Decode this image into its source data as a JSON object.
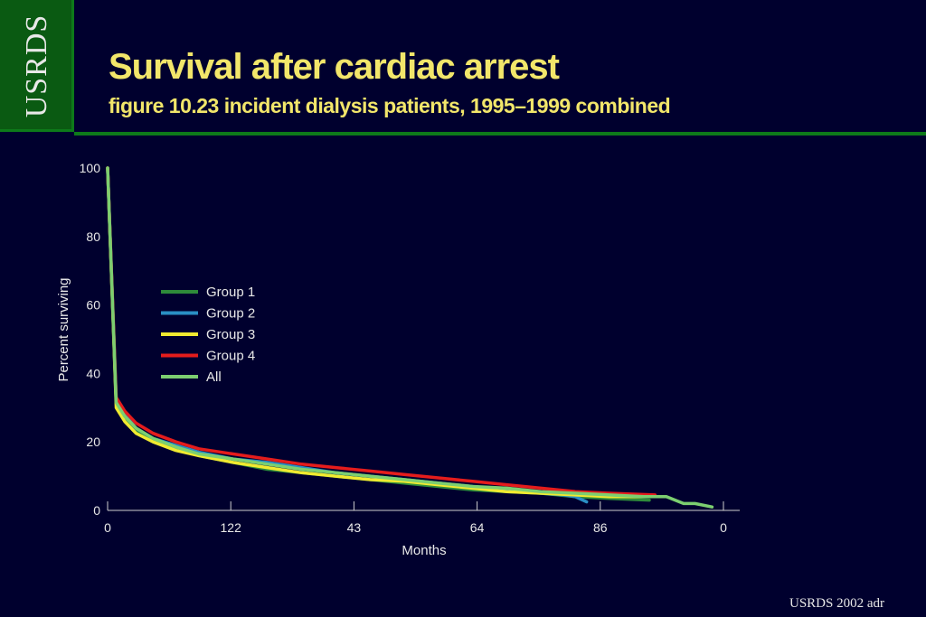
{
  "header": {
    "logo_text": "USRDS",
    "title": "Survival after cardiac arrest",
    "subtitle": "figure 10.23 incident dialysis patients, 1995–1999 combined"
  },
  "footer": {
    "source": "USRDS 2002 adr"
  },
  "colors": {
    "background": "#00002e",
    "title": "#f2e66a",
    "group1": "#2e8b3a",
    "group2": "#2a8fc4",
    "group3": "#f0ea30",
    "group4": "#e41c1c",
    "all": "#7ccf70"
  },
  "chart_data": {
    "type": "line",
    "xlabel": "Months",
    "ylabel": "Percent surviving",
    "x_tick_labels": [
      "0",
      "122",
      "43",
      "64",
      "86",
      "0"
    ],
    "y_ticks": [
      0,
      20,
      40,
      60,
      80,
      100
    ],
    "xlim": [
      0,
      108
    ],
    "ylim": [
      0,
      100
    ],
    "legend_position": "center-left",
    "grid": false,
    "series": [
      {
        "name": "Group 1",
        "color": "#2e8b3a",
        "x": [
          0,
          1.5,
          3,
          5,
          8,
          12,
          16,
          22,
          28,
          34,
          40,
          46,
          52,
          58,
          64,
          70,
          76,
          82,
          88,
          95
        ],
        "y": [
          100,
          31,
          27,
          23,
          20,
          18,
          16,
          14,
          12,
          11,
          10,
          9,
          8,
          7,
          6,
          5.5,
          5,
          4,
          3.5,
          3
        ]
      },
      {
        "name": "Group 2",
        "color": "#2a8fc4",
        "x": [
          0,
          1.5,
          3,
          5,
          8,
          12,
          16,
          22,
          28,
          34,
          40,
          46,
          52,
          58,
          64,
          70,
          76,
          80,
          82,
          84
        ],
        "y": [
          100,
          32,
          28,
          24,
          21,
          19,
          17,
          15,
          14,
          12.5,
          11,
          10,
          9,
          8,
          7,
          6,
          5,
          4.5,
          4,
          2.5
        ]
      },
      {
        "name": "Group 3",
        "color": "#f0ea30",
        "x": [
          0,
          1.5,
          3,
          5,
          8,
          12,
          16,
          22,
          28,
          34,
          40,
          46,
          52,
          58,
          64,
          70,
          76,
          82,
          88,
          95
        ],
        "y": [
          100,
          30,
          26,
          22.5,
          20,
          17.5,
          16,
          14,
          12.5,
          11,
          10,
          9,
          8.5,
          7.5,
          6.5,
          5.5,
          5,
          4.5,
          4,
          4
        ]
      },
      {
        "name": "Group 4",
        "color": "#e41c1c",
        "x": [
          0,
          1.5,
          3,
          5,
          8,
          12,
          16,
          22,
          28,
          34,
          40,
          46,
          52,
          58,
          64,
          70,
          76,
          82,
          88,
          96
        ],
        "y": [
          100,
          33,
          29,
          25.5,
          22.5,
          20,
          18,
          16.5,
          15,
          13.5,
          12.5,
          11.5,
          10.5,
          9.5,
          8.5,
          7.5,
          6.5,
          5.5,
          5,
          4.5
        ]
      },
      {
        "name": "All",
        "color": "#7ccf70",
        "x": [
          0,
          1.5,
          3,
          5,
          8,
          12,
          16,
          22,
          28,
          34,
          40,
          46,
          52,
          58,
          64,
          70,
          76,
          82,
          88,
          94,
          98,
          101,
          103,
          106
        ],
        "y": [
          100,
          31.5,
          27.5,
          24,
          21,
          18.5,
          16.5,
          15,
          13.5,
          12,
          11,
          10,
          9,
          8,
          7,
          6.5,
          5.5,
          5,
          4.5,
          4,
          4,
          2,
          2,
          1
        ]
      }
    ]
  }
}
